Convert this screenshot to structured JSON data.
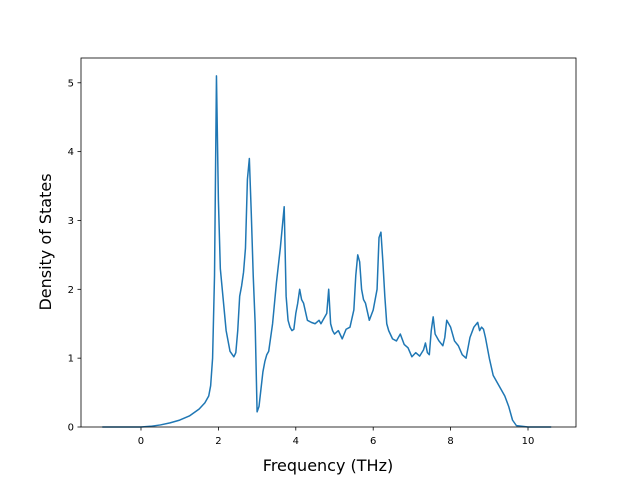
{
  "chart_data": {
    "type": "line",
    "xlabel": "Frequency (THz)",
    "ylabel": "Density of States",
    "color": "#1f77b4",
    "x": [
      -1.0,
      -0.5,
      0,
      0.25,
      0.5,
      0.75,
      1.0,
      1.25,
      1.5,
      1.65,
      1.75,
      1.8,
      1.85,
      1.9,
      1.95,
      2.0,
      2.05,
      2.1,
      2.2,
      2.3,
      2.4,
      2.45,
      2.5,
      2.55,
      2.6,
      2.65,
      2.7,
      2.75,
      2.8,
      2.85,
      2.9,
      2.95,
      3.0,
      3.05,
      3.1,
      3.15,
      3.2,
      3.25,
      3.3,
      3.4,
      3.5,
      3.6,
      3.7,
      3.75,
      3.8,
      3.85,
      3.9,
      3.95,
      4.0,
      4.05,
      4.1,
      4.15,
      4.2,
      4.3,
      4.4,
      4.5,
      4.6,
      4.65,
      4.7,
      4.8,
      4.85,
      4.9,
      4.95,
      5.0,
      5.1,
      5.2,
      5.3,
      5.4,
      5.5,
      5.55,
      5.6,
      5.65,
      5.7,
      5.75,
      5.8,
      5.9,
      6.0,
      6.1,
      6.15,
      6.2,
      6.25,
      6.3,
      6.35,
      6.4,
      6.5,
      6.6,
      6.7,
      6.8,
      6.9,
      7.0,
      7.1,
      7.2,
      7.3,
      7.35,
      7.4,
      7.45,
      7.5,
      7.55,
      7.6,
      7.7,
      7.8,
      7.85,
      7.9,
      8.0,
      8.1,
      8.2,
      8.3,
      8.4,
      8.5,
      8.6,
      8.7,
      8.75,
      8.8,
      8.85,
      8.9,
      9.0,
      9.1,
      9.2,
      9.3,
      9.4,
      9.5,
      9.6,
      9.7,
      10.0,
      10.6
    ],
    "values": [
      0,
      0,
      0,
      0.01,
      0.03,
      0.06,
      0.1,
      0.16,
      0.26,
      0.35,
      0.45,
      0.6,
      1.0,
      2.2,
      5.1,
      3.3,
      2.3,
      2.0,
      1.4,
      1.1,
      1.02,
      1.08,
      1.4,
      1.9,
      2.05,
      2.25,
      2.6,
      3.6,
      3.9,
      3.1,
      2.2,
      1.5,
      0.22,
      0.3,
      0.55,
      0.8,
      0.95,
      1.05,
      1.1,
      1.5,
      2.1,
      2.6,
      3.2,
      1.9,
      1.55,
      1.45,
      1.4,
      1.42,
      1.65,
      1.8,
      2.0,
      1.85,
      1.8,
      1.55,
      1.52,
      1.5,
      1.55,
      1.5,
      1.55,
      1.65,
      2.0,
      1.5,
      1.4,
      1.35,
      1.4,
      1.28,
      1.42,
      1.45,
      1.7,
      2.2,
      2.5,
      2.4,
      2.0,
      1.85,
      1.8,
      1.55,
      1.7,
      2.0,
      2.75,
      2.83,
      2.4,
      1.9,
      1.5,
      1.4,
      1.28,
      1.25,
      1.35,
      1.2,
      1.15,
      1.02,
      1.08,
      1.03,
      1.12,
      1.22,
      1.08,
      1.05,
      1.4,
      1.6,
      1.35,
      1.25,
      1.18,
      1.3,
      1.55,
      1.45,
      1.25,
      1.18,
      1.05,
      1.0,
      1.3,
      1.45,
      1.52,
      1.4,
      1.45,
      1.42,
      1.3,
      1.0,
      0.75,
      0.65,
      0.55,
      0.45,
      0.3,
      0.1,
      0.02,
      0,
      0
    ],
    "xlim": [
      -1.55,
      11.24
    ],
    "ylim": [
      0,
      5.36
    ],
    "xticks": [
      0,
      2,
      4,
      6,
      8,
      10
    ],
    "yticks": [
      0,
      1,
      2,
      3,
      4,
      5
    ],
    "grid": false
  }
}
